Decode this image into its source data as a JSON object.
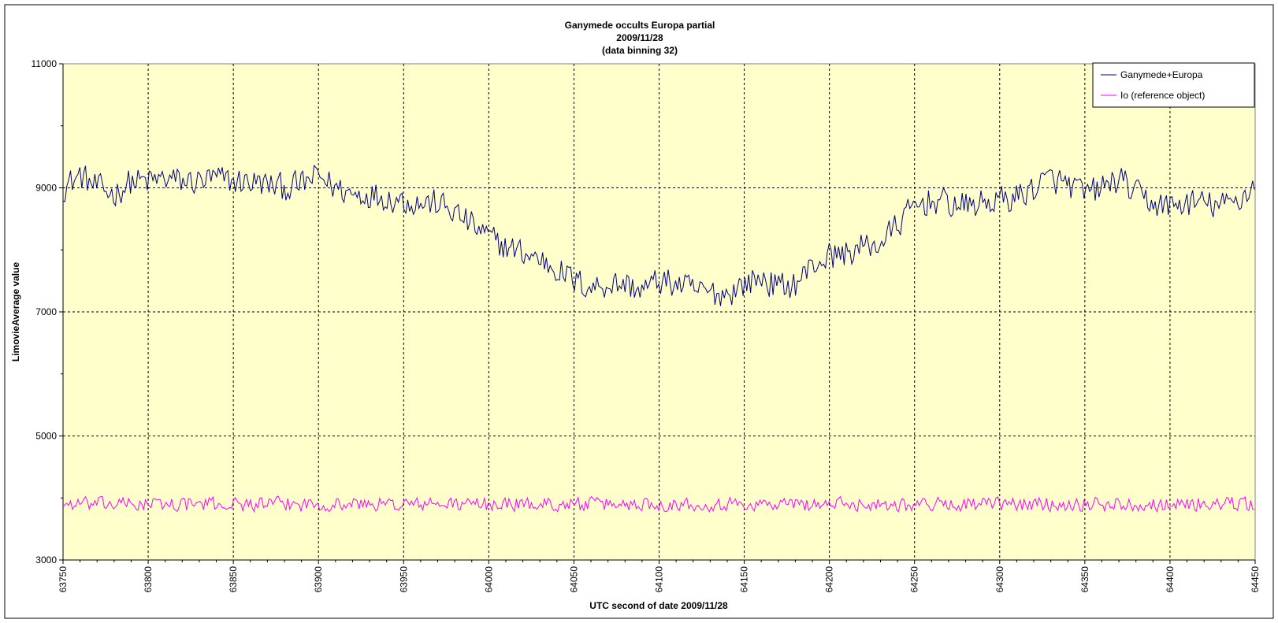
{
  "chart_data": {
    "type": "line",
    "title": "Ganymede occults Europa partial",
    "subtitle": "2009/11/28",
    "subtitle2": "(data binning 32)",
    "xlabel": "UTC second  of date 2009/11/28",
    "ylabel": "LimovieAverage value",
    "xlim": [
      63750,
      64450
    ],
    "ylim": [
      3000,
      11000
    ],
    "xticks": [
      63750,
      63800,
      63850,
      63900,
      63950,
      64000,
      64050,
      64100,
      64150,
      64200,
      64250,
      64300,
      64350,
      64400,
      64450
    ],
    "yticks": [
      3000,
      5000,
      7000,
      9000,
      11000
    ],
    "grid": true,
    "legend_position": "top-right",
    "plot_background": "#ffffcc",
    "series": [
      {
        "name": "Ganymede+Europa",
        "color": "#000080",
        "x": [
          63750,
          63760,
          63770,
          63780,
          63790,
          63800,
          63810,
          63820,
          63830,
          63840,
          63850,
          63860,
          63870,
          63880,
          63890,
          63900,
          63910,
          63920,
          63930,
          63940,
          63950,
          63960,
          63970,
          63980,
          63990,
          64000,
          64010,
          64020,
          64030,
          64040,
          64050,
          64060,
          64070,
          64080,
          64090,
          64100,
          64110,
          64120,
          64130,
          64140,
          64150,
          64160,
          64170,
          64180,
          64190,
          64200,
          64210,
          64220,
          64230,
          64240,
          64250,
          64260,
          64270,
          64280,
          64290,
          64300,
          64310,
          64320,
          64330,
          64340,
          64350,
          64360,
          64370,
          64380,
          64390,
          64400,
          64410,
          64420,
          64430,
          64440,
          64450
        ],
        "y": [
          9000,
          9200,
          9000,
          8900,
          9100,
          9100,
          9150,
          9100,
          9100,
          9150,
          9100,
          9100,
          9050,
          9000,
          9050,
          9200,
          9000,
          8900,
          8900,
          8850,
          8800,
          8750,
          8750,
          8600,
          8400,
          8200,
          8050,
          7950,
          7850,
          7700,
          7500,
          7400,
          7450,
          7450,
          7350,
          7500,
          7450,
          7350,
          7300,
          7300,
          7450,
          7550,
          7400,
          7450,
          7750,
          7900,
          7950,
          8050,
          8100,
          8400,
          8700,
          8800,
          8750,
          8700,
          8750,
          8800,
          8850,
          9000,
          9150,
          9050,
          8900,
          9000,
          9150,
          8900,
          8750,
          8700,
          8750,
          8750,
          8700,
          8800,
          9050
        ],
        "noise_amplitude": 260
      },
      {
        "name": "Io (reference object)",
        "color": "#ff00ff",
        "x": [
          63750,
          64450
        ],
        "y": [
          3900,
          3900
        ],
        "noise_amplitude": 130
      }
    ]
  }
}
